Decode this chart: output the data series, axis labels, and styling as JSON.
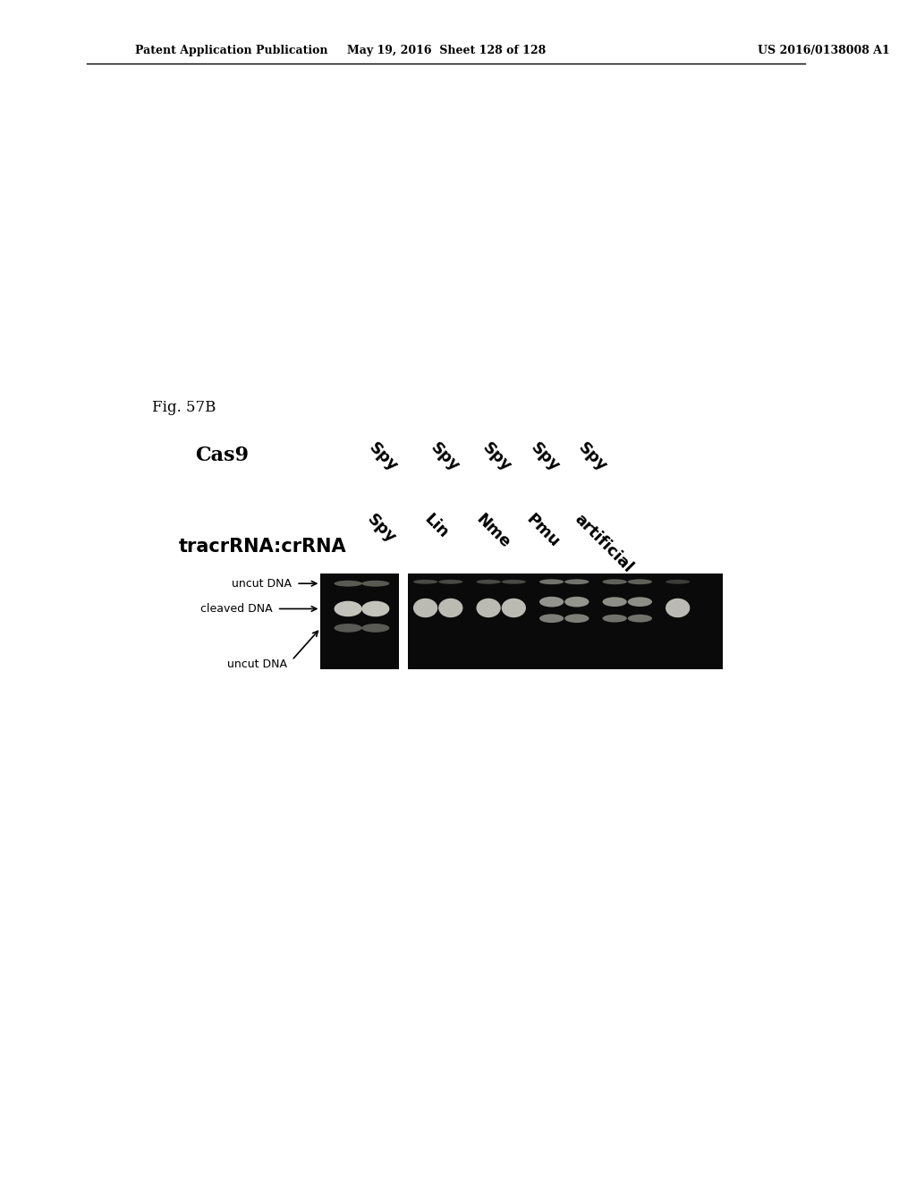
{
  "header_left": "Patent Application Publication",
  "header_middle": "May 19, 2016  Sheet 128 of 128",
  "header_right": "US 2016/0138008 A1",
  "fig_label": "Fig. 57B",
  "cas9_label": "Cas9",
  "tracr_label": "tracrRNA:crRNA",
  "col_labels_top": [
    "Spy",
    "Spy",
    "Spy",
    "Spy",
    "Spy"
  ],
  "col_labels_bottom": [
    "Spy",
    "Lin",
    "Nme",
    "Pmu",
    "artificial"
  ],
  "band_labels": [
    "uncut DNA",
    "cleaved DNA",
    "uncut DNA"
  ],
  "bg_color": "#ffffff",
  "gel_bg": "#0a0a0a",
  "band_color_bright": "#e8e8e0",
  "band_color_mid": "#b0b0a8"
}
